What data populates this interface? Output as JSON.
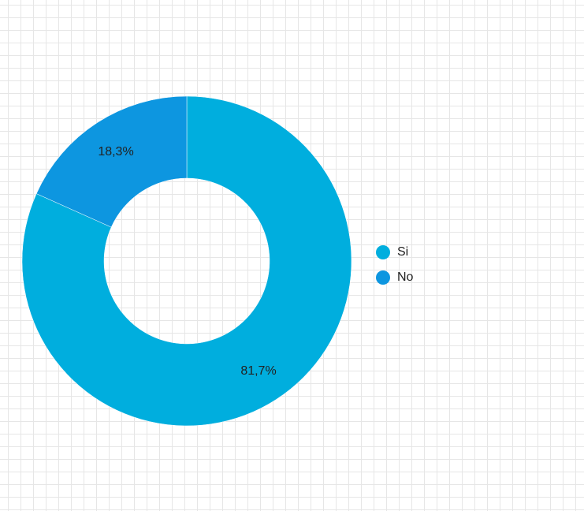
{
  "chart_data": {
    "type": "pie",
    "variant": "donut",
    "categories": [
      "Si",
      "No"
    ],
    "values": [
      81.7,
      18.3
    ],
    "data_labels": [
      "81,7%",
      "18,3%"
    ],
    "colors": [
      "#00aede",
      "#0d96e0"
    ],
    "legend_position": "right",
    "grid": true
  },
  "legend": {
    "items": [
      {
        "label": "Si",
        "color": "#00aede"
      },
      {
        "label": "No",
        "color": "#0d96e0"
      }
    ]
  }
}
